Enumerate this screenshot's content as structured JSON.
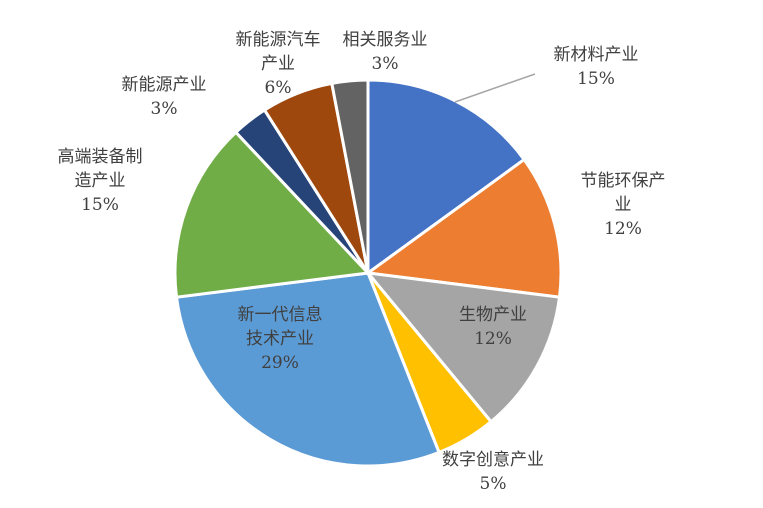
{
  "chart_data": {
    "type": "pie",
    "title": "",
    "slices": [
      {
        "name": "新材料产业",
        "label_lines": [
          "新材料产业"
        ],
        "value_label": "15%",
        "value": 15,
        "color": "#4472C4"
      },
      {
        "name": "节能环保产业",
        "label_lines": [
          "节能环保产",
          "业"
        ],
        "value_label": "12%",
        "value": 12,
        "color": "#ED7D31"
      },
      {
        "name": "生物产业",
        "label_lines": [
          "生物产业"
        ],
        "value_label": "12%",
        "value": 12,
        "color": "#A5A5A5"
      },
      {
        "name": "数字创意产业",
        "label_lines": [
          "数字创意产业"
        ],
        "value_label": "5%",
        "value": 5,
        "color": "#FFC000"
      },
      {
        "name": "新一代信息技术产业",
        "label_lines": [
          "新一代信息",
          "技术产业"
        ],
        "value_label": "29%",
        "value": 29,
        "color": "#5B9BD5"
      },
      {
        "name": "高端装备制造产业",
        "label_lines": [
          "高端装备制",
          "造产业"
        ],
        "value_label": "15%",
        "value": 15,
        "color": "#70AD47"
      },
      {
        "name": "新能源产业",
        "label_lines": [
          "新能源产业"
        ],
        "value_label": "3%",
        "value": 3,
        "color": "#264478"
      },
      {
        "name": "新能源汽车产业",
        "label_lines": [
          "新能源汽车",
          "产业"
        ],
        "value_label": "6%",
        "value": 6,
        "color": "#9E480E"
      },
      {
        "name": "相关服务业",
        "label_lines": [
          "相关服务业"
        ],
        "value_label": "3%",
        "value": 3,
        "color": "#636363"
      }
    ]
  }
}
